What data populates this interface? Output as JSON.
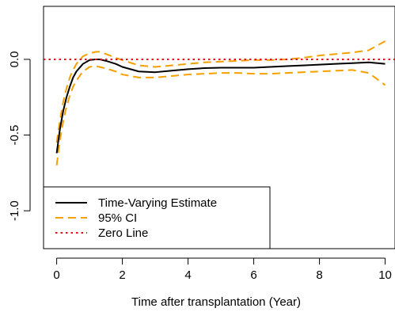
{
  "chart_data": {
    "type": "line",
    "title": "",
    "xlabel": "Time after transplantation (Year)",
    "ylabel": "",
    "xlim": [
      -0.4,
      10.3
    ],
    "ylim": [
      -1.25,
      0.35
    ],
    "x_ticks": [
      0,
      2,
      4,
      6,
      8,
      10
    ],
    "x_tick_labels": [
      "0",
      "2",
      "4",
      "6",
      "8",
      "10"
    ],
    "y_ticks": [
      -1.0,
      -0.5,
      0.0
    ],
    "y_tick_labels": [
      "-1.0",
      "-0.5",
      "0.0"
    ],
    "grid": false,
    "legend": {
      "placement": "bottom-left",
      "entries": [
        "Time-Varying Estimate",
        "95% CI",
        "Zero Line"
      ]
    },
    "series": [
      {
        "name": "Time-Varying Estimate",
        "color": "#000000",
        "style": "solid",
        "x": [
          0,
          0.1,
          0.2,
          0.3,
          0.4,
          0.5,
          0.6,
          0.8,
          1.0,
          1.2,
          1.3,
          1.5,
          1.8,
          2.0,
          2.5,
          3.0,
          3.5,
          4.0,
          4.5,
          5.0,
          5.5,
          6.0,
          6.5,
          7.0,
          7.5,
          8.0,
          8.5,
          9.0,
          9.5,
          10.0
        ],
        "y": [
          -0.62,
          -0.46,
          -0.34,
          -0.25,
          -0.18,
          -0.12,
          -0.08,
          -0.03,
          -0.005,
          0.0,
          0.0,
          -0.01,
          -0.03,
          -0.05,
          -0.08,
          -0.085,
          -0.075,
          -0.065,
          -0.058,
          -0.055,
          -0.055,
          -0.055,
          -0.05,
          -0.045,
          -0.04,
          -0.035,
          -0.03,
          -0.025,
          -0.02,
          -0.03
        ]
      },
      {
        "name": "95% CI",
        "color": "#F5A000",
        "style": "dashed",
        "x": [
          0,
          0.1,
          0.2,
          0.3,
          0.4,
          0.5,
          0.6,
          0.8,
          1.0,
          1.2,
          1.3,
          1.5,
          1.8,
          2.0,
          2.5,
          3.0,
          3.5,
          4.0,
          4.5,
          5.0,
          5.5,
          6.0,
          6.5,
          7.0,
          7.5,
          8.0,
          8.5,
          9.0,
          9.5,
          10.0
        ],
        "y": [
          -0.55,
          -0.4,
          -0.28,
          -0.19,
          -0.12,
          -0.07,
          -0.03,
          0.02,
          0.04,
          0.05,
          0.05,
          0.035,
          0.01,
          -0.005,
          -0.04,
          -0.05,
          -0.04,
          -0.03,
          -0.02,
          -0.015,
          -0.01,
          -0.005,
          -0.005,
          0.0,
          0.01,
          0.025,
          0.035,
          0.045,
          0.06,
          0.12
        ]
      },
      {
        "name": "",
        "color": "#F5A000",
        "style": "dashed",
        "x": [
          0,
          0.1,
          0.2,
          0.3,
          0.4,
          0.5,
          0.6,
          0.8,
          1.0,
          1.2,
          1.3,
          1.5,
          1.8,
          2.0,
          2.5,
          3.0,
          3.5,
          4.0,
          4.5,
          5.0,
          5.5,
          6.0,
          6.5,
          7.0,
          7.5,
          8.0,
          8.5,
          9.0,
          9.5,
          10.0
        ],
        "y": [
          -0.7,
          -0.53,
          -0.41,
          -0.31,
          -0.24,
          -0.18,
          -0.14,
          -0.08,
          -0.05,
          -0.045,
          -0.05,
          -0.06,
          -0.08,
          -0.1,
          -0.12,
          -0.12,
          -0.11,
          -0.1,
          -0.095,
          -0.09,
          -0.09,
          -0.095,
          -0.095,
          -0.09,
          -0.085,
          -0.08,
          -0.075,
          -0.07,
          -0.09,
          -0.17
        ]
      },
      {
        "name": "Zero Line",
        "color": "#E8101A",
        "style": "dotted",
        "x": [
          -0.4,
          10.3
        ],
        "y": [
          0.0,
          0.0
        ]
      }
    ]
  }
}
